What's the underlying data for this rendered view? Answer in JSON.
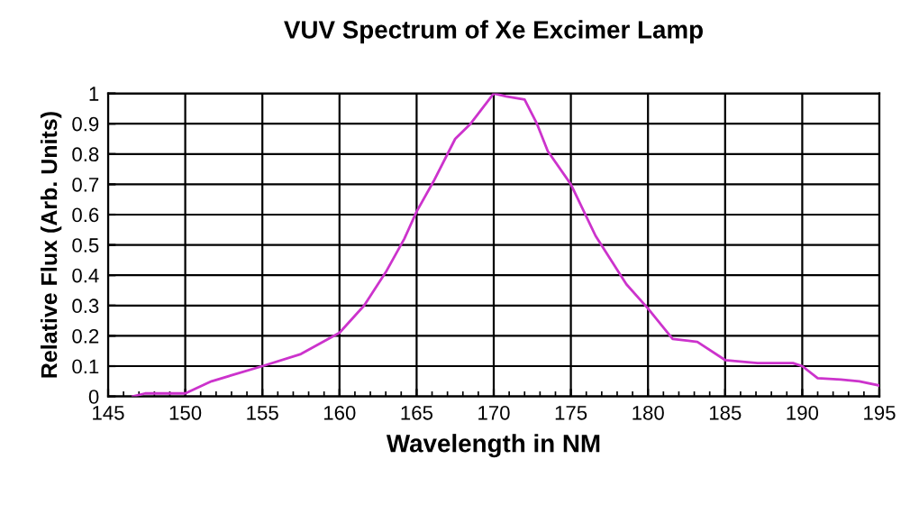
{
  "chart_data": {
    "type": "line",
    "title": "VUV Spectrum of Xe Excimer Lamp",
    "xlabel": "Wavelength in NM",
    "ylabel": "Relative Flux (Arb. Units)",
    "series": [
      {
        "color": "#cc33cc",
        "x": [
          146.6,
          147.4,
          150,
          151.7,
          155,
          157.5,
          160,
          161.6,
          163.0,
          164.2,
          165,
          166.1,
          167.5,
          168.5,
          170,
          170.8,
          172.0,
          172.8,
          173.5,
          175,
          176.6,
          178.6,
          180,
          181.6,
          183.2,
          185,
          187.1,
          189.4,
          190,
          191,
          192.5,
          193.7,
          195
        ],
        "values": [
          0,
          0.01,
          0.01,
          0.05,
          0.1,
          0.14,
          0.21,
          0.3,
          0.41,
          0.52,
          0.61,
          0.71,
          0.85,
          0.9,
          1.0,
          0.99,
          0.98,
          0.9,
          0.81,
          0.7,
          0.53,
          0.37,
          0.29,
          0.19,
          0.18,
          0.12,
          0.11,
          0.11,
          0.1,
          0.06,
          0.056,
          0.05,
          0.036
        ]
      }
    ],
    "xlim": [
      145,
      195
    ],
    "xticks": [
      145,
      150,
      155,
      160,
      165,
      170,
      175,
      180,
      185,
      190,
      195
    ],
    "ylim": [
      0,
      1
    ],
    "yticks": [
      0,
      0.1,
      0.2,
      0.3,
      0.4,
      0.5,
      0.6,
      0.7,
      0.8,
      0.9,
      1
    ],
    "grid": true,
    "marker": "none",
    "line_style": "solid"
  }
}
